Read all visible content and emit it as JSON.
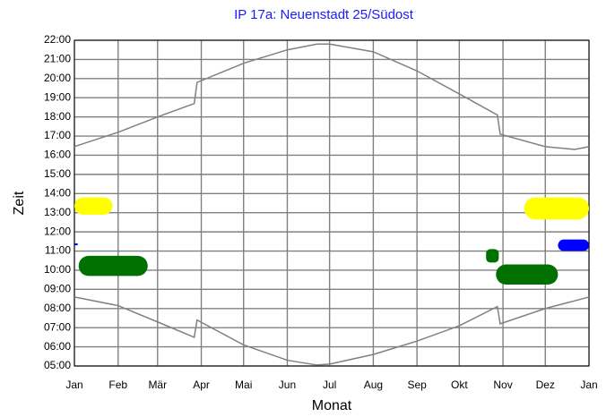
{
  "chart_data": {
    "type": "line",
    "title": "IP 17a: Neuenstadt 25/Südost",
    "xlabel": "Monat",
    "ylabel": "Zeit",
    "xlim": [
      0,
      365
    ],
    "ylim": [
      5,
      22
    ],
    "xticks": [
      {
        "value": 0,
        "label": "Jan"
      },
      {
        "value": 31,
        "label": "Feb"
      },
      {
        "value": 59,
        "label": "Mär"
      },
      {
        "value": 90,
        "label": "Apr"
      },
      {
        "value": 120,
        "label": "Mai"
      },
      {
        "value": 151,
        "label": "Jun"
      },
      {
        "value": 181,
        "label": "Jul"
      },
      {
        "value": 212,
        "label": "Aug"
      },
      {
        "value": 243,
        "label": "Sep"
      },
      {
        "value": 273,
        "label": "Okt"
      },
      {
        "value": 304,
        "label": "Nov"
      },
      {
        "value": 334,
        "label": "Dez"
      },
      {
        "value": 365,
        "label": "Jan"
      }
    ],
    "yticks": [
      {
        "value": 5,
        "label": "05:00"
      },
      {
        "value": 6,
        "label": "06:00"
      },
      {
        "value": 7,
        "label": "07:00"
      },
      {
        "value": 8,
        "label": "08:00"
      },
      {
        "value": 9,
        "label": "09:00"
      },
      {
        "value": 10,
        "label": "10:00"
      },
      {
        "value": 11,
        "label": "11:00"
      },
      {
        "value": 12,
        "label": "12:00"
      },
      {
        "value": 13,
        "label": "13:00"
      },
      {
        "value": 14,
        "label": "14:00"
      },
      {
        "value": 15,
        "label": "15:00"
      },
      {
        "value": 16,
        "label": "16:00"
      },
      {
        "value": 17,
        "label": "17:00"
      },
      {
        "value": 18,
        "label": "18:00"
      },
      {
        "value": 19,
        "label": "19:00"
      },
      {
        "value": 20,
        "label": "20:00"
      },
      {
        "value": 21,
        "label": "21:00"
      },
      {
        "value": 22,
        "label": "22:00"
      }
    ],
    "grid": true,
    "series": [
      {
        "color": "#808080",
        "x": [
          0,
          31,
          59,
          85,
          87,
          120,
          151,
          172,
          181,
          212,
          243,
          273,
          300,
          302,
          334,
          355,
          365
        ],
        "values": [
          16.45,
          17.2,
          18.0,
          18.7,
          19.8,
          20.8,
          21.5,
          21.8,
          21.8,
          21.4,
          20.4,
          19.2,
          18.1,
          17.1,
          16.45,
          16.3,
          16.45
        ]
      },
      {
        "color": "#808080",
        "x": [
          0,
          31,
          59,
          85,
          87,
          120,
          151,
          172,
          181,
          212,
          243,
          273,
          300,
          302,
          334,
          365
        ],
        "values": [
          8.6,
          8.15,
          7.3,
          6.5,
          7.4,
          6.1,
          5.3,
          5.05,
          5.1,
          5.6,
          6.3,
          7.1,
          8.1,
          7.2,
          8.0,
          8.6
        ]
      }
    ],
    "shadow_areas": [
      {
        "color": "#ffff00",
        "x": [
          0,
          27
        ],
        "y": [
          12.9,
          13.8
        ]
      },
      {
        "color": "#0000ff",
        "x": [
          0,
          2.5
        ],
        "y": [
          11.3,
          11.4
        ]
      },
      {
        "color": "#007000",
        "x": [
          3,
          52
        ],
        "y": [
          9.7,
          10.75
        ]
      },
      {
        "color": "#007000",
        "x": [
          292,
          301
        ],
        "y": [
          10.4,
          11.1
        ]
      },
      {
        "color": "#007000",
        "x": [
          299,
          343
        ],
        "y": [
          9.25,
          10.3
        ]
      },
      {
        "color": "#ffff00",
        "x": [
          319,
          365
        ],
        "y": [
          12.65,
          13.8
        ]
      },
      {
        "color": "#0000ff",
        "x": [
          343,
          365
        ],
        "y": [
          11.0,
          11.6
        ]
      }
    ]
  }
}
